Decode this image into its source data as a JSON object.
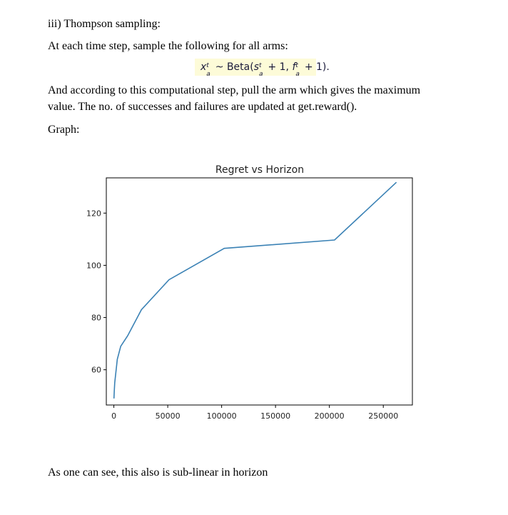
{
  "document": {
    "heading": "iii) Thompson sampling:",
    "intro": "At each time step, sample the following for all arms:",
    "formula": {
      "x": "x",
      "sup_t": "t",
      "sub_a": "a",
      "tilde": "~",
      "beta": "Beta(",
      "s": "s",
      "plus1": "+ 1,",
      "f": "f",
      "plus1_end": "+ 1)."
    },
    "paragraph_line1": "And according to this computational step, pull the arm which gives the maximum",
    "paragraph_line2": "value. The no. of successes and failures are updated at get.reward().",
    "graph_label": "Graph:",
    "conclusion": "As one can see, this also is sub-linear in horizon"
  },
  "chart_data": {
    "type": "line",
    "title": "Regret vs Horizon",
    "xlabel": "",
    "ylabel": "",
    "xlim": [
      -7000,
      277000
    ],
    "ylim": [
      46.5,
      133.5
    ],
    "xticks": [
      0,
      50000,
      100000,
      150000,
      200000,
      250000
    ],
    "xtick_labels": [
      "0",
      "50000",
      "100000",
      "150000",
      "200000",
      "250000"
    ],
    "yticks": [
      60,
      80,
      100,
      120
    ],
    "ytick_labels": [
      "60",
      "80",
      "100",
      "120"
    ],
    "grid": false,
    "color": "#3b82b5",
    "series": [
      {
        "x": [
          100,
          400,
          800,
          1600,
          3200,
          6400,
          12800,
          25600,
          51200,
          102400,
          204800,
          262144
        ],
        "y": [
          49,
          52,
          55,
          58,
          64,
          69,
          73,
          83,
          94.5,
          106.5,
          109.7,
          131.8
        ]
      }
    ]
  }
}
